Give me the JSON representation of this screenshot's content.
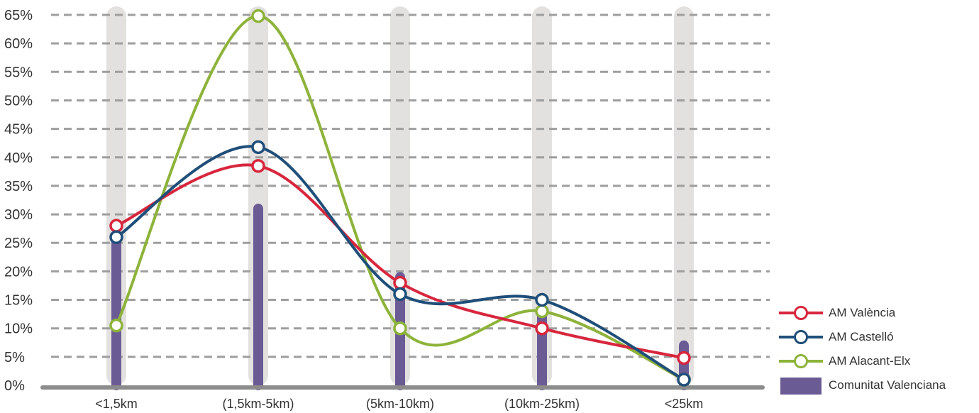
{
  "chart_data": {
    "type": "line",
    "categories": [
      "<1,5km",
      "(1,5km-5km)",
      "(5km-10km)",
      "(10km-25km)",
      "<25km"
    ],
    "y_ticks": [
      "0%",
      "5%",
      "10%",
      "15%",
      "20%",
      "25%",
      "30%",
      "35%",
      "40%",
      "45%",
      "50%",
      "55%",
      "60%",
      "65%"
    ],
    "ylim": [
      0,
      65
    ],
    "grid": true,
    "legend_position": "bottom-right",
    "bar_series": {
      "name": "Comunitat Valenciana",
      "values": [
        26,
        31,
        19,
        12,
        7
      ],
      "color": "#6b5b95"
    },
    "series": [
      {
        "name": "AM València",
        "values": [
          28,
          38.5,
          18,
          10,
          4.8
        ],
        "color": "#d7263d"
      },
      {
        "name": "AM Castelló",
        "values": [
          26,
          41.8,
          16,
          15,
          1
        ],
        "color": "#1f4e79"
      },
      {
        "name": "AM Alacant-Elx",
        "values": [
          10.5,
          64.8,
          10,
          13,
          1
        ],
        "color": "#8db33a"
      }
    ],
    "colors": {
      "column_background": "#e3e1df",
      "grid": "#9e9e9e",
      "axis": "#8c8c8c"
    }
  }
}
